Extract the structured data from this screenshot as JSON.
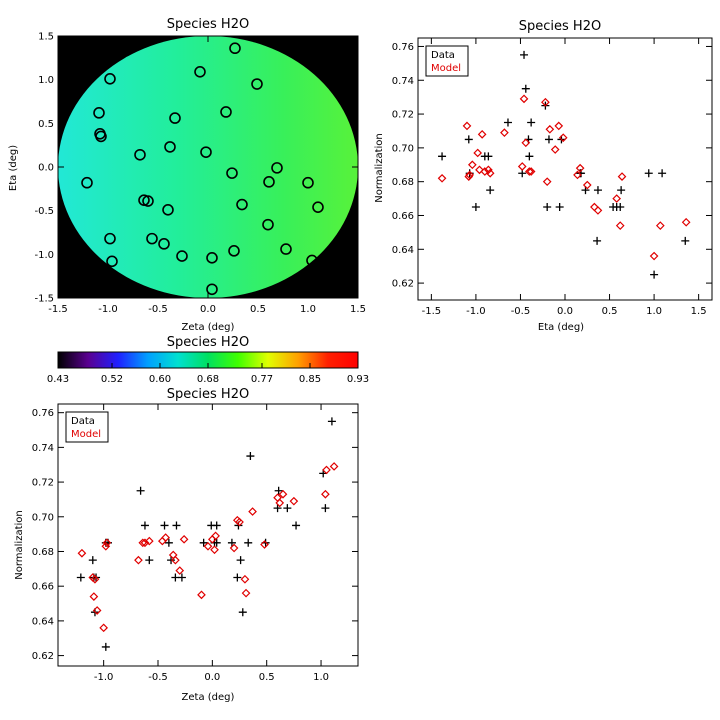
{
  "chart_data": [
    {
      "id": "map",
      "type": "heatmap",
      "title": "Species H2O",
      "xlabel": "Zeta (deg)",
      "ylabel": "Eta (deg)",
      "xlim": [
        -1.5,
        1.5
      ],
      "ylim": [
        -1.5,
        1.5
      ],
      "xticks": [
        "-1.5",
        "-1.0",
        "-0.5",
        "0.0",
        "0.5",
        "1.0",
        "1.5"
      ],
      "yticks": [
        "-1.5",
        "-1.0",
        "-0.5",
        "0.0",
        "0.5",
        "1.0",
        "1.5"
      ],
      "background_color": "#000000",
      "field_colors": [
        "#22e8d6",
        "#22ee9a",
        "#38f05a",
        "#58f23a"
      ],
      "markers": [
        {
          "x": 0.27,
          "y": 1.36
        },
        {
          "x": -0.98,
          "y": 1.01
        },
        {
          "x": -0.08,
          "y": 1.09
        },
        {
          "x": 0.49,
          "y": 0.95
        },
        {
          "x": -1.09,
          "y": 0.62
        },
        {
          "x": -0.33,
          "y": 0.56
        },
        {
          "x": 0.18,
          "y": 0.63
        },
        {
          "x": -1.08,
          "y": 0.38
        },
        {
          "x": -1.07,
          "y": 0.35
        },
        {
          "x": -0.38,
          "y": 0.23
        },
        {
          "x": -0.68,
          "y": 0.14
        },
        {
          "x": -0.02,
          "y": 0.17
        },
        {
          "x": 0.69,
          "y": -0.01
        },
        {
          "x": 0.24,
          "y": -0.07
        },
        {
          "x": -1.21,
          "y": -0.18
        },
        {
          "x": 1.0,
          "y": -0.18
        },
        {
          "x": 0.61,
          "y": -0.17
        },
        {
          "x": -0.64,
          "y": -0.38
        },
        {
          "x": -0.6,
          "y": -0.39
        },
        {
          "x": 0.34,
          "y": -0.43
        },
        {
          "x": 1.1,
          "y": -0.46
        },
        {
          "x": -0.4,
          "y": -0.49
        },
        {
          "x": 0.6,
          "y": -0.66
        },
        {
          "x": -0.98,
          "y": -0.82
        },
        {
          "x": -0.56,
          "y": -0.82
        },
        {
          "x": -0.44,
          "y": -0.88
        },
        {
          "x": 0.26,
          "y": -0.96
        },
        {
          "x": 0.78,
          "y": -0.94
        },
        {
          "x": -0.26,
          "y": -1.02
        },
        {
          "x": 0.04,
          "y": -1.04
        },
        {
          "x": -0.96,
          "y": -1.08
        },
        {
          "x": 1.04,
          "y": -1.07
        },
        {
          "x": 0.04,
          "y": -1.4
        }
      ]
    },
    {
      "id": "colorbar",
      "type": "heatmap",
      "title": "Species H2O",
      "ticks": [
        "0.43",
        "0.52",
        "0.60",
        "0.68",
        "0.77",
        "0.85",
        "0.93"
      ],
      "range": [
        0.43,
        0.93
      ],
      "colors": [
        "#000000",
        "#5a0090",
        "#2020ff",
        "#00a0ff",
        "#00e0d0",
        "#00e060",
        "#40ff00",
        "#e0ff00",
        "#ffa000",
        "#ff2000",
        "#ff0000"
      ]
    },
    {
      "id": "eta",
      "type": "scatter",
      "title": "Species H2O",
      "xlabel": "Eta (deg)",
      "ylabel": "Normalization",
      "xlim": [
        -1.65,
        1.65
      ],
      "ylim": [
        0.61,
        0.765
      ],
      "xticks": [
        "-1.5",
        "-1.0",
        "-0.5",
        "0.0",
        "0.5",
        "1.0",
        "1.5"
      ],
      "yticks": [
        "0.62",
        "0.64",
        "0.66",
        "0.68",
        "0.70",
        "0.72",
        "0.74",
        "0.76"
      ],
      "legend": {
        "position": "top-left",
        "entries": [
          "Data",
          "Model"
        ]
      },
      "series": [
        {
          "name": "Data",
          "marker": "plus",
          "color": "#000000",
          "x": [
            -1.38,
            -1.08,
            -1.07,
            -1.0,
            -0.9,
            -0.86,
            -0.84,
            -0.64,
            -0.48,
            -0.46,
            -0.44,
            -0.41,
            -0.4,
            -0.38,
            -0.22,
            -0.2,
            -0.18,
            -0.06,
            -0.04,
            0.17,
            0.18,
            0.23,
            0.36,
            0.37,
            0.54,
            0.58,
            0.62,
            0.63,
            0.94,
            1.0,
            1.09,
            1.35
          ],
          "y": [
            0.695,
            0.705,
            0.685,
            0.665,
            0.695,
            0.695,
            0.675,
            0.715,
            0.685,
            0.755,
            0.735,
            0.705,
            0.695,
            0.715,
            0.725,
            0.665,
            0.705,
            0.665,
            0.705,
            0.685,
            0.685,
            0.675,
            0.645,
            0.675,
            0.665,
            0.665,
            0.665,
            0.675,
            0.685,
            0.625,
            0.685,
            0.645
          ]
        },
        {
          "name": "Model",
          "marker": "diamond",
          "color": "#e00000",
          "x": [
            -1.38,
            -1.1,
            -1.08,
            -1.07,
            -1.04,
            -0.98,
            -0.96,
            -0.93,
            -0.9,
            -0.86,
            -0.84,
            -0.68,
            -0.48,
            -0.46,
            -0.44,
            -0.4,
            -0.38,
            -0.22,
            -0.2,
            -0.17,
            -0.11,
            -0.07,
            -0.02,
            0.14,
            0.17,
            0.25,
            0.33,
            0.37,
            0.58,
            0.62,
            0.64,
            1.0,
            1.07,
            1.36
          ],
          "y": [
            0.682,
            0.713,
            0.683,
            0.684,
            0.69,
            0.697,
            0.687,
            0.708,
            0.686,
            0.687,
            0.685,
            0.709,
            0.689,
            0.729,
            0.703,
            0.686,
            0.686,
            0.727,
            0.68,
            0.711,
            0.699,
            0.713,
            0.706,
            0.684,
            0.688,
            0.678,
            0.665,
            0.663,
            0.67,
            0.654,
            0.683,
            0.636,
            0.654,
            0.656
          ]
        }
      ]
    },
    {
      "id": "zeta",
      "type": "scatter",
      "title": "Species H2O",
      "xlabel": "Zeta (deg)",
      "ylabel": "Normalization",
      "xlim": [
        -1.42,
        1.34
      ],
      "ylim": [
        0.614,
        0.765
      ],
      "xticks": [
        "-1.0",
        "-0.5",
        "0.0",
        "0.5",
        "1.0"
      ],
      "yticks": [
        "0.62",
        "0.64",
        "0.66",
        "0.68",
        "0.70",
        "0.72",
        "0.74",
        "0.76"
      ],
      "legend": {
        "position": "top-left",
        "entries": [
          "Data",
          "Model"
        ]
      },
      "series": [
        {
          "name": "Data",
          "marker": "plus",
          "color": "#000000",
          "x": [
            -1.21,
            -1.1,
            -1.09,
            -1.08,
            -1.07,
            -0.98,
            -0.98,
            -0.96,
            -0.66,
            -0.62,
            -0.58,
            -0.44,
            -0.4,
            -0.38,
            -0.34,
            -0.33,
            -0.28,
            -0.08,
            -0.01,
            0.02,
            0.04,
            0.04,
            0.18,
            0.23,
            0.24,
            0.26,
            0.28,
            0.33,
            0.35,
            0.49,
            0.6,
            0.61,
            0.69,
            0.77,
            1.02,
            1.04,
            1.1
          ],
          "y": [
            0.665,
            0.675,
            0.665,
            0.645,
            0.665,
            0.685,
            0.625,
            0.685,
            0.715,
            0.695,
            0.675,
            0.695,
            0.685,
            0.675,
            0.665,
            0.695,
            0.665,
            0.685,
            0.695,
            0.685,
            0.685,
            0.695,
            0.685,
            0.665,
            0.695,
            0.675,
            0.645,
            0.685,
            0.735,
            0.685,
            0.705,
            0.715,
            0.705,
            0.695,
            0.725,
            0.705,
            0.755
          ]
        },
        {
          "name": "Model",
          "marker": "diamond",
          "color": "#e00000",
          "x": [
            -1.2,
            -1.1,
            -1.09,
            -1.08,
            -1.06,
            -1.0,
            -0.98,
            -0.97,
            -0.68,
            -0.64,
            -0.62,
            -0.58,
            -0.46,
            -0.43,
            -0.36,
            -0.34,
            -0.3,
            -0.26,
            -0.1,
            -0.04,
            0.0,
            0.02,
            0.03,
            0.2,
            0.23,
            0.25,
            0.3,
            0.31,
            0.37,
            0.48,
            0.6,
            0.62,
            0.65,
            0.75,
            1.04,
            1.05,
            1.12
          ],
          "y": [
            0.679,
            0.665,
            0.654,
            0.664,
            0.646,
            0.636,
            0.683,
            0.685,
            0.675,
            0.685,
            0.685,
            0.686,
            0.686,
            0.688,
            0.678,
            0.675,
            0.669,
            0.687,
            0.655,
            0.683,
            0.687,
            0.681,
            0.689,
            0.682,
            0.698,
            0.697,
            0.664,
            0.656,
            0.703,
            0.684,
            0.711,
            0.708,
            0.713,
            0.709,
            0.713,
            0.727,
            0.729
          ]
        }
      ]
    }
  ]
}
